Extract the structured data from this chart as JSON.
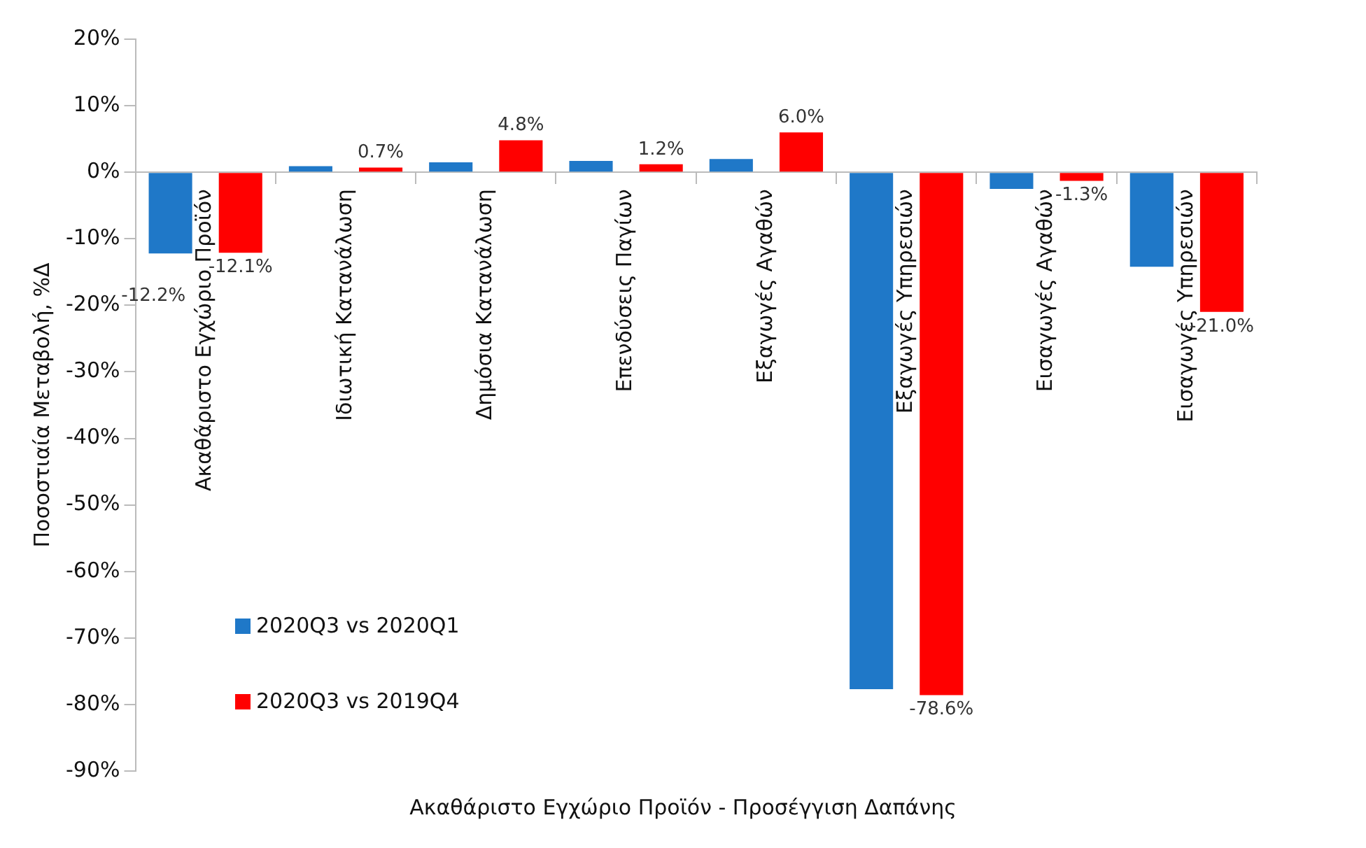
{
  "chart_data": {
    "type": "bar",
    "xlabel": "Ακαθάριστο Εγχώριο Προϊόν - Προσέγγιση Δαπάνης",
    "ylabel": "Ποσοστιαία Μεταβολή, %Δ",
    "categories": [
      "Ακαθάριστο Εγχώριο Προϊόν",
      "Ιδιωτική Κατανάλωση",
      "Δημόσια Κατανάλωση",
      "Επενδύσεις Παγίων",
      "Εξαγωγές Αγαθών",
      "Εξαγωγές Υπηρεσιών",
      "Εισαγωγές Αγαθών",
      "Εισαγωγές Υπηρεσιών"
    ],
    "series": [
      {
        "name": "2020Q3 vs 2020Q1",
        "color": "#1f78c8",
        "values": [
          -12.2,
          0.9,
          1.5,
          1.7,
          2.0,
          -77.7,
          -2.5,
          -14.2
        ],
        "value_labels": [
          "-12.2%",
          null,
          null,
          null,
          null,
          null,
          null,
          null
        ]
      },
      {
        "name": "2020Q3 vs 2019Q4",
        "color": "#ff0000",
        "values": [
          -12.1,
          0.7,
          4.8,
          1.2,
          6.0,
          -78.6,
          -1.3,
          -21.0
        ],
        "value_labels": [
          "-12.1%",
          "0.7%",
          "4.8%",
          "1.2%",
          "6.0%",
          "-78.6%",
          "-1.3%",
          "-21.0%"
        ]
      }
    ],
    "ylim": [
      -90,
      20
    ],
    "yticks": [
      {
        "value": -90,
        "label": "-90%"
      },
      {
        "value": -80,
        "label": "-80%"
      },
      {
        "value": -70,
        "label": "-70%"
      },
      {
        "value": -60,
        "label": "-60%"
      },
      {
        "value": -50,
        "label": "-50%"
      },
      {
        "value": -40,
        "label": "-40%"
      },
      {
        "value": -30,
        "label": "-30%"
      },
      {
        "value": -20,
        "label": "-20%"
      },
      {
        "value": -10,
        "label": "-10%"
      },
      {
        "value": 0,
        "label": "0%"
      },
      {
        "value": 10,
        "label": "10%"
      },
      {
        "value": 20,
        "label": "20%"
      }
    ],
    "grid": false,
    "legend": "left"
  }
}
